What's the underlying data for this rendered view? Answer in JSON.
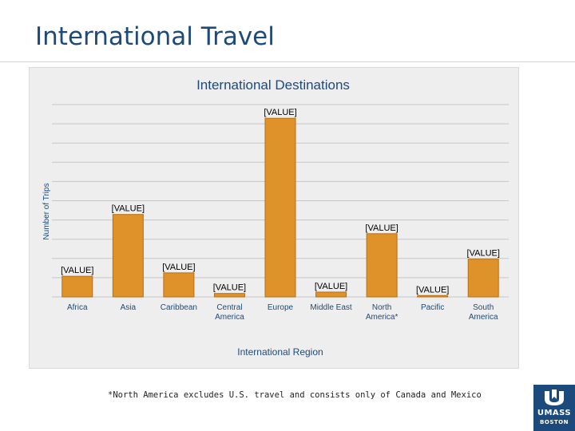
{
  "slide": {
    "title": "International Travel",
    "footnote": "*North America excludes U.S. travel and consists only of Canada and Mexico"
  },
  "logo": {
    "line1": "UMASS",
    "line2": "BOSTON",
    "color": "#1d4a7c"
  },
  "chart_data": {
    "type": "bar",
    "title": "International Destinations",
    "xlabel": "International Region",
    "ylabel": "Number of Trips",
    "categories": [
      "Africa",
      "Asia",
      "Caribbean",
      "Central America",
      "Europe",
      "Middle East",
      "North America*",
      "Pacific",
      "South America"
    ],
    "category_lines": [
      [
        "Africa"
      ],
      [
        "Asia"
      ],
      [
        "Caribbean"
      ],
      [
        "Central",
        "America"
      ],
      [
        "Europe"
      ],
      [
        "Middle East"
      ],
      [
        "North",
        "America*"
      ],
      [
        "Pacific"
      ],
      [
        "South",
        "America"
      ]
    ],
    "values": [
      30,
      120,
      35,
      5,
      260,
      7,
      92,
      2,
      55
    ],
    "data_labels": [
      "[VALUE]",
      "[VALUE]",
      "[VALUE]",
      "[VALUE]",
      "[VALUE]",
      "[VALUE]",
      "[VALUE]",
      "[VALUE]",
      "[VALUE]"
    ],
    "ylim": [
      0,
      280
    ],
    "gridlines": 10,
    "grid": true,
    "legend": "none",
    "bar_color": "#e0922a",
    "bar_edge_color": "#b86e12"
  }
}
